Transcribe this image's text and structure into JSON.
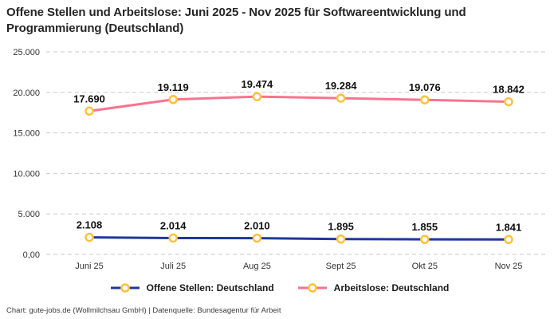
{
  "title": "Offene Stellen und Arbeitslose: Juni 2025 - Nov 2025 für Softwareentwicklung und Programmierung (Deutschland)",
  "footer": "Chart: gute-jobs.de (Wollmilchsau GmbH) | Datenquelle: Bundesagentur für Arbeit",
  "chart_data": {
    "type": "line",
    "title": "Offene Stellen und Arbeitslose: Juni 2025 - Nov 2025 für Softwareentwicklung und Programmierung (Deutschland)",
    "categories": [
      "Juni 25",
      "Juli 25",
      "Aug 25",
      "Sept 25",
      "Okt 25",
      "Nov 25"
    ],
    "series": [
      {
        "name": "Offene Stellen: Deutschland",
        "values": [
          2108,
          2014,
          2010,
          1895,
          1855,
          1841
        ],
        "labels": [
          "2.108",
          "2.014",
          "2.010",
          "1.895",
          "1.855",
          "1.841"
        ],
        "color": "#20389b"
      },
      {
        "name": "Arbeitslose: Deutschland",
        "values": [
          17690,
          19119,
          19474,
          19284,
          19076,
          18842
        ],
        "labels": [
          "17.690",
          "19.119",
          "19.474",
          "19.284",
          "19.076",
          "18.842"
        ],
        "color": "#f8738f"
      }
    ],
    "marker_color": "#fdc23c",
    "marker_fill": "#ffffff",
    "grid_color": "#c9c9c9",
    "grid_style": "dashed-horizontal",
    "y_ticks": [
      {
        "value": 0,
        "label": "0,00"
      },
      {
        "value": 5000,
        "label": "5.000"
      },
      {
        "value": 10000,
        "label": "10.000"
      },
      {
        "value": 15000,
        "label": "15.000"
      },
      {
        "value": 20000,
        "label": "20.000"
      },
      {
        "value": 25000,
        "label": "25.000"
      }
    ],
    "ylim": [
      0,
      25000
    ],
    "xlabel": "",
    "ylabel": "",
    "legend_position": "bottom"
  }
}
